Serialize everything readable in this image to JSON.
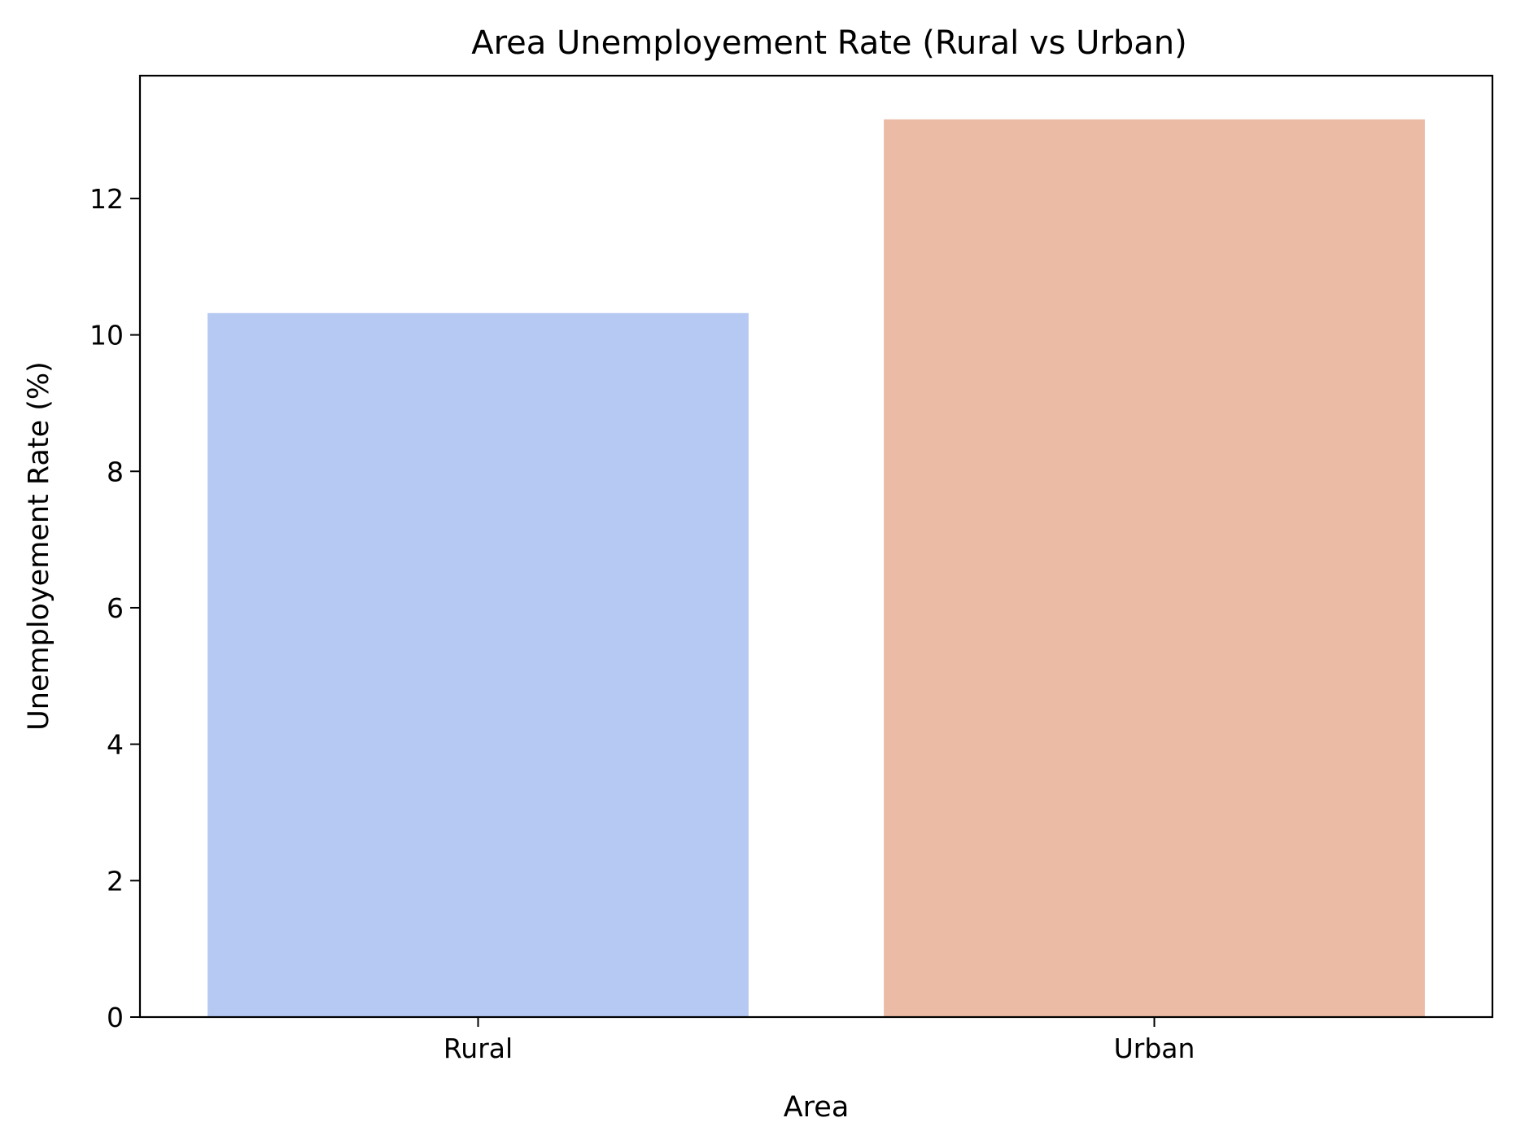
{
  "chart_data": {
    "type": "bar",
    "title": "Area Unemployement Rate (Rural vs Urban)",
    "xlabel": "Area",
    "ylabel": "Unemployement Rate (%)",
    "categories": [
      "Rural",
      "Urban"
    ],
    "values": [
      10.32,
      13.16
    ],
    "colors": [
      "#b5c9f2",
      "#ebbba6"
    ],
    "ylim": [
      0,
      13.8
    ],
    "yticks": [
      0,
      2,
      4,
      6,
      8,
      10,
      12
    ],
    "grid": false
  }
}
